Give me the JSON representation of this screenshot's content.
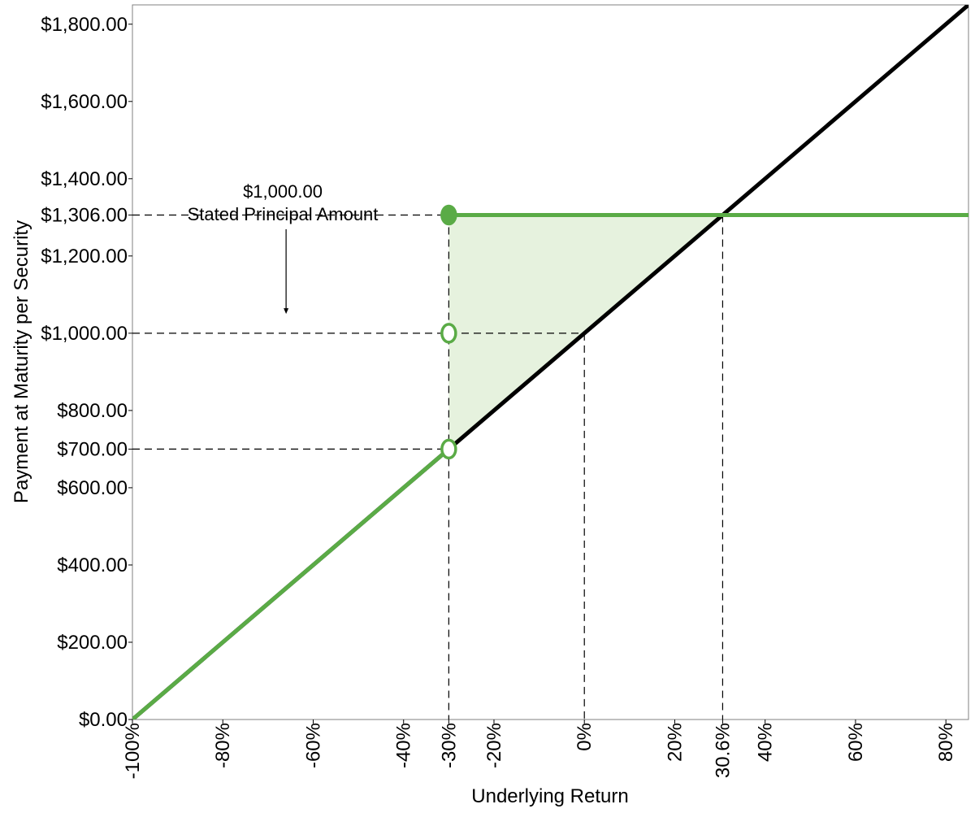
{
  "chart_data": {
    "type": "line",
    "xlabel": "Underlying Return",
    "ylabel": "Payment at Maturity per Security",
    "xlim": [
      -100,
      85
    ],
    "ylim": [
      0,
      1850
    ],
    "x_ticks": [
      {
        "value": -100,
        "label": "-100%"
      },
      {
        "value": -80,
        "label": "-80%"
      },
      {
        "value": -60,
        "label": "-60%"
      },
      {
        "value": -40,
        "label": "-40%"
      },
      {
        "value": -30,
        "label": "-30%"
      },
      {
        "value": -20,
        "label": "-20%"
      },
      {
        "value": 0,
        "label": "0%"
      },
      {
        "value": 20,
        "label": "20%"
      },
      {
        "value": 30.6,
        "label": "30.6%"
      },
      {
        "value": 40,
        "label": "40%"
      },
      {
        "value": 60,
        "label": "60%"
      },
      {
        "value": 80,
        "label": "80%"
      }
    ],
    "y_ticks": [
      {
        "value": 0,
        "label": "$0.00"
      },
      {
        "value": 200,
        "label": "$200.00"
      },
      {
        "value": 400,
        "label": "$400.00"
      },
      {
        "value": 600,
        "label": "$600.00"
      },
      {
        "value": 700,
        "label": "$700.00"
      },
      {
        "value": 800,
        "label": "$800.00"
      },
      {
        "value": 1000,
        "label": "$1,000.00"
      },
      {
        "value": 1200,
        "label": "$1,200.00"
      },
      {
        "value": 1306,
        "label": "$1,306.00"
      },
      {
        "value": 1400,
        "label": "$1,400.00"
      },
      {
        "value": 1600,
        "label": "$1,600.00"
      },
      {
        "value": 1800,
        "label": "$1,800.00"
      }
    ],
    "series": [
      {
        "color": "#000000",
        "x": [
          -100,
          85
        ],
        "y": [
          0,
          1850
        ]
      },
      {
        "color": "#5aab46",
        "segments": [
          {
            "x": [
              -100,
              -30
            ],
            "y": [
              0,
              700
            ]
          },
          {
            "x": [
              -30,
              85
            ],
            "y": [
              1306,
              1306
            ]
          }
        ]
      }
    ],
    "shaded_region": {
      "color": "#e6f2de",
      "points": [
        [
          -30,
          700
        ],
        [
          -30,
          1306
        ],
        [
          30.6,
          1306
        ]
      ]
    },
    "markers": [
      {
        "x": -30,
        "y": 1306,
        "style": "filled",
        "color": "#5aab46"
      },
      {
        "x": -30,
        "y": 1000,
        "style": "open",
        "color": "#5aab46"
      },
      {
        "x": -30,
        "y": 700,
        "style": "open",
        "color": "#5aab46"
      }
    ],
    "reference_lines": {
      "horizontal": [
        {
          "y": 1306,
          "x_to": -30
        },
        {
          "y": 1000,
          "x_to": 0
        },
        {
          "y": 700,
          "x_to": -30
        }
      ],
      "vertical": [
        {
          "x": -30,
          "y_to": 1306
        },
        {
          "x": 0,
          "y_to": 1000
        },
        {
          "x": 30.6,
          "y_to": 1306
        }
      ]
    },
    "annotation": {
      "line1": "$1,000.00",
      "line2": "Stated Principal Amount",
      "arrow_to": {
        "x": -66,
        "y": 1050
      }
    },
    "grid": false
  }
}
